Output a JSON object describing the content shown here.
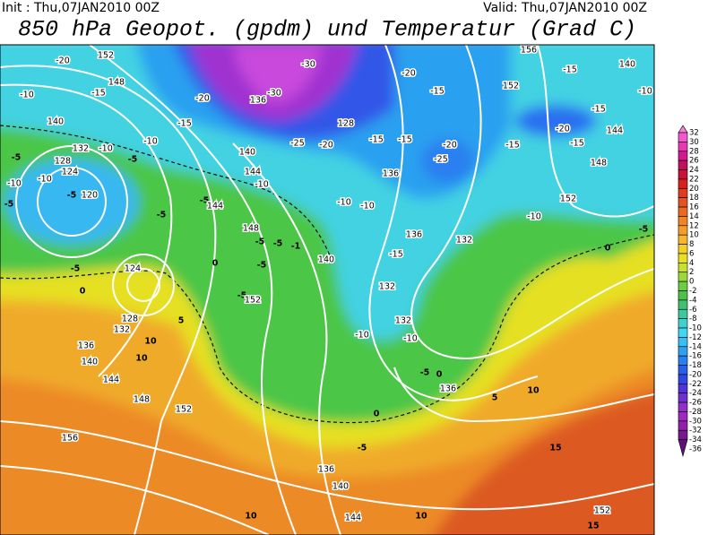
{
  "header": {
    "init": "Init : Thu,07JAN2010 00Z",
    "valid": "Valid: Thu,07JAN2010 00Z",
    "title": "850 hPa Geopot. (gpdm) und Temperatur (Grad C)"
  },
  "colorbar": {
    "levels": [
      32,
      30,
      28,
      26,
      24,
      22,
      20,
      18,
      16,
      14,
      12,
      10,
      8,
      6,
      4,
      2,
      0,
      -2,
      -4,
      -6,
      -8,
      -10,
      -12,
      -14,
      -16,
      -18,
      -20,
      -22,
      -24,
      -26,
      -28,
      -30,
      -32,
      -34,
      -36
    ],
    "colors": [
      "#f580d8",
      "#f058cc",
      "#e838b4",
      "#d41890",
      "#c01060",
      "#c81038",
      "#d82020",
      "#e03c1c",
      "#e45420",
      "#ea6a22",
      "#f08426",
      "#f49e28",
      "#f6b82a",
      "#f4d024",
      "#e8e020",
      "#c8e030",
      "#9cd83a",
      "#6ccc44",
      "#4cc246",
      "#40c070",
      "#3cc8a0",
      "#40d0d0",
      "#40d8f0",
      "#38c0f4",
      "#30a0f0",
      "#2a80f0",
      "#2860ec",
      "#3048e0",
      "#5034d8",
      "#7030d0",
      "#9030c8",
      "#a028c0",
      "#9020a8",
      "#781890",
      "#601078"
    ]
  },
  "contour_labels": [
    "-20",
    "152",
    "-10",
    "148",
    "-15",
    "140",
    "132",
    "-10",
    "-5",
    "128",
    "-5",
    "124",
    "-10",
    "-10",
    "-5",
    "120",
    "-5",
    "-10",
    "-15",
    "-20",
    "136",
    "-30",
    "-30",
    "128",
    "-25",
    "-20",
    "140",
    "144",
    "-10",
    "-5",
    "144",
    "-5",
    "148",
    "-5",
    "-5",
    "-1",
    "-5",
    "140",
    "-5",
    "152",
    "0",
    "-5",
    "124",
    "0",
    "128",
    "132",
    "5",
    "136",
    "10",
    "140",
    "10",
    "144",
    "148",
    "152",
    "156",
    "-15",
    "136",
    "-10",
    "-10",
    "-15",
    "-20",
    "-25",
    "132",
    "136",
    "-15",
    "132",
    "-10",
    "132",
    "-10",
    "-5",
    "0",
    "136",
    "5",
    "10",
    "0",
    "-5",
    "136",
    "140",
    "144",
    "10",
    "10",
    "15",
    "152",
    "15",
    "-10",
    "0",
    "-5",
    "-10",
    "140",
    "-15",
    "-15",
    "-20",
    "-15",
    "144",
    "148",
    "152",
    "-15",
    "152",
    "156",
    "-20",
    "-15"
  ]
}
